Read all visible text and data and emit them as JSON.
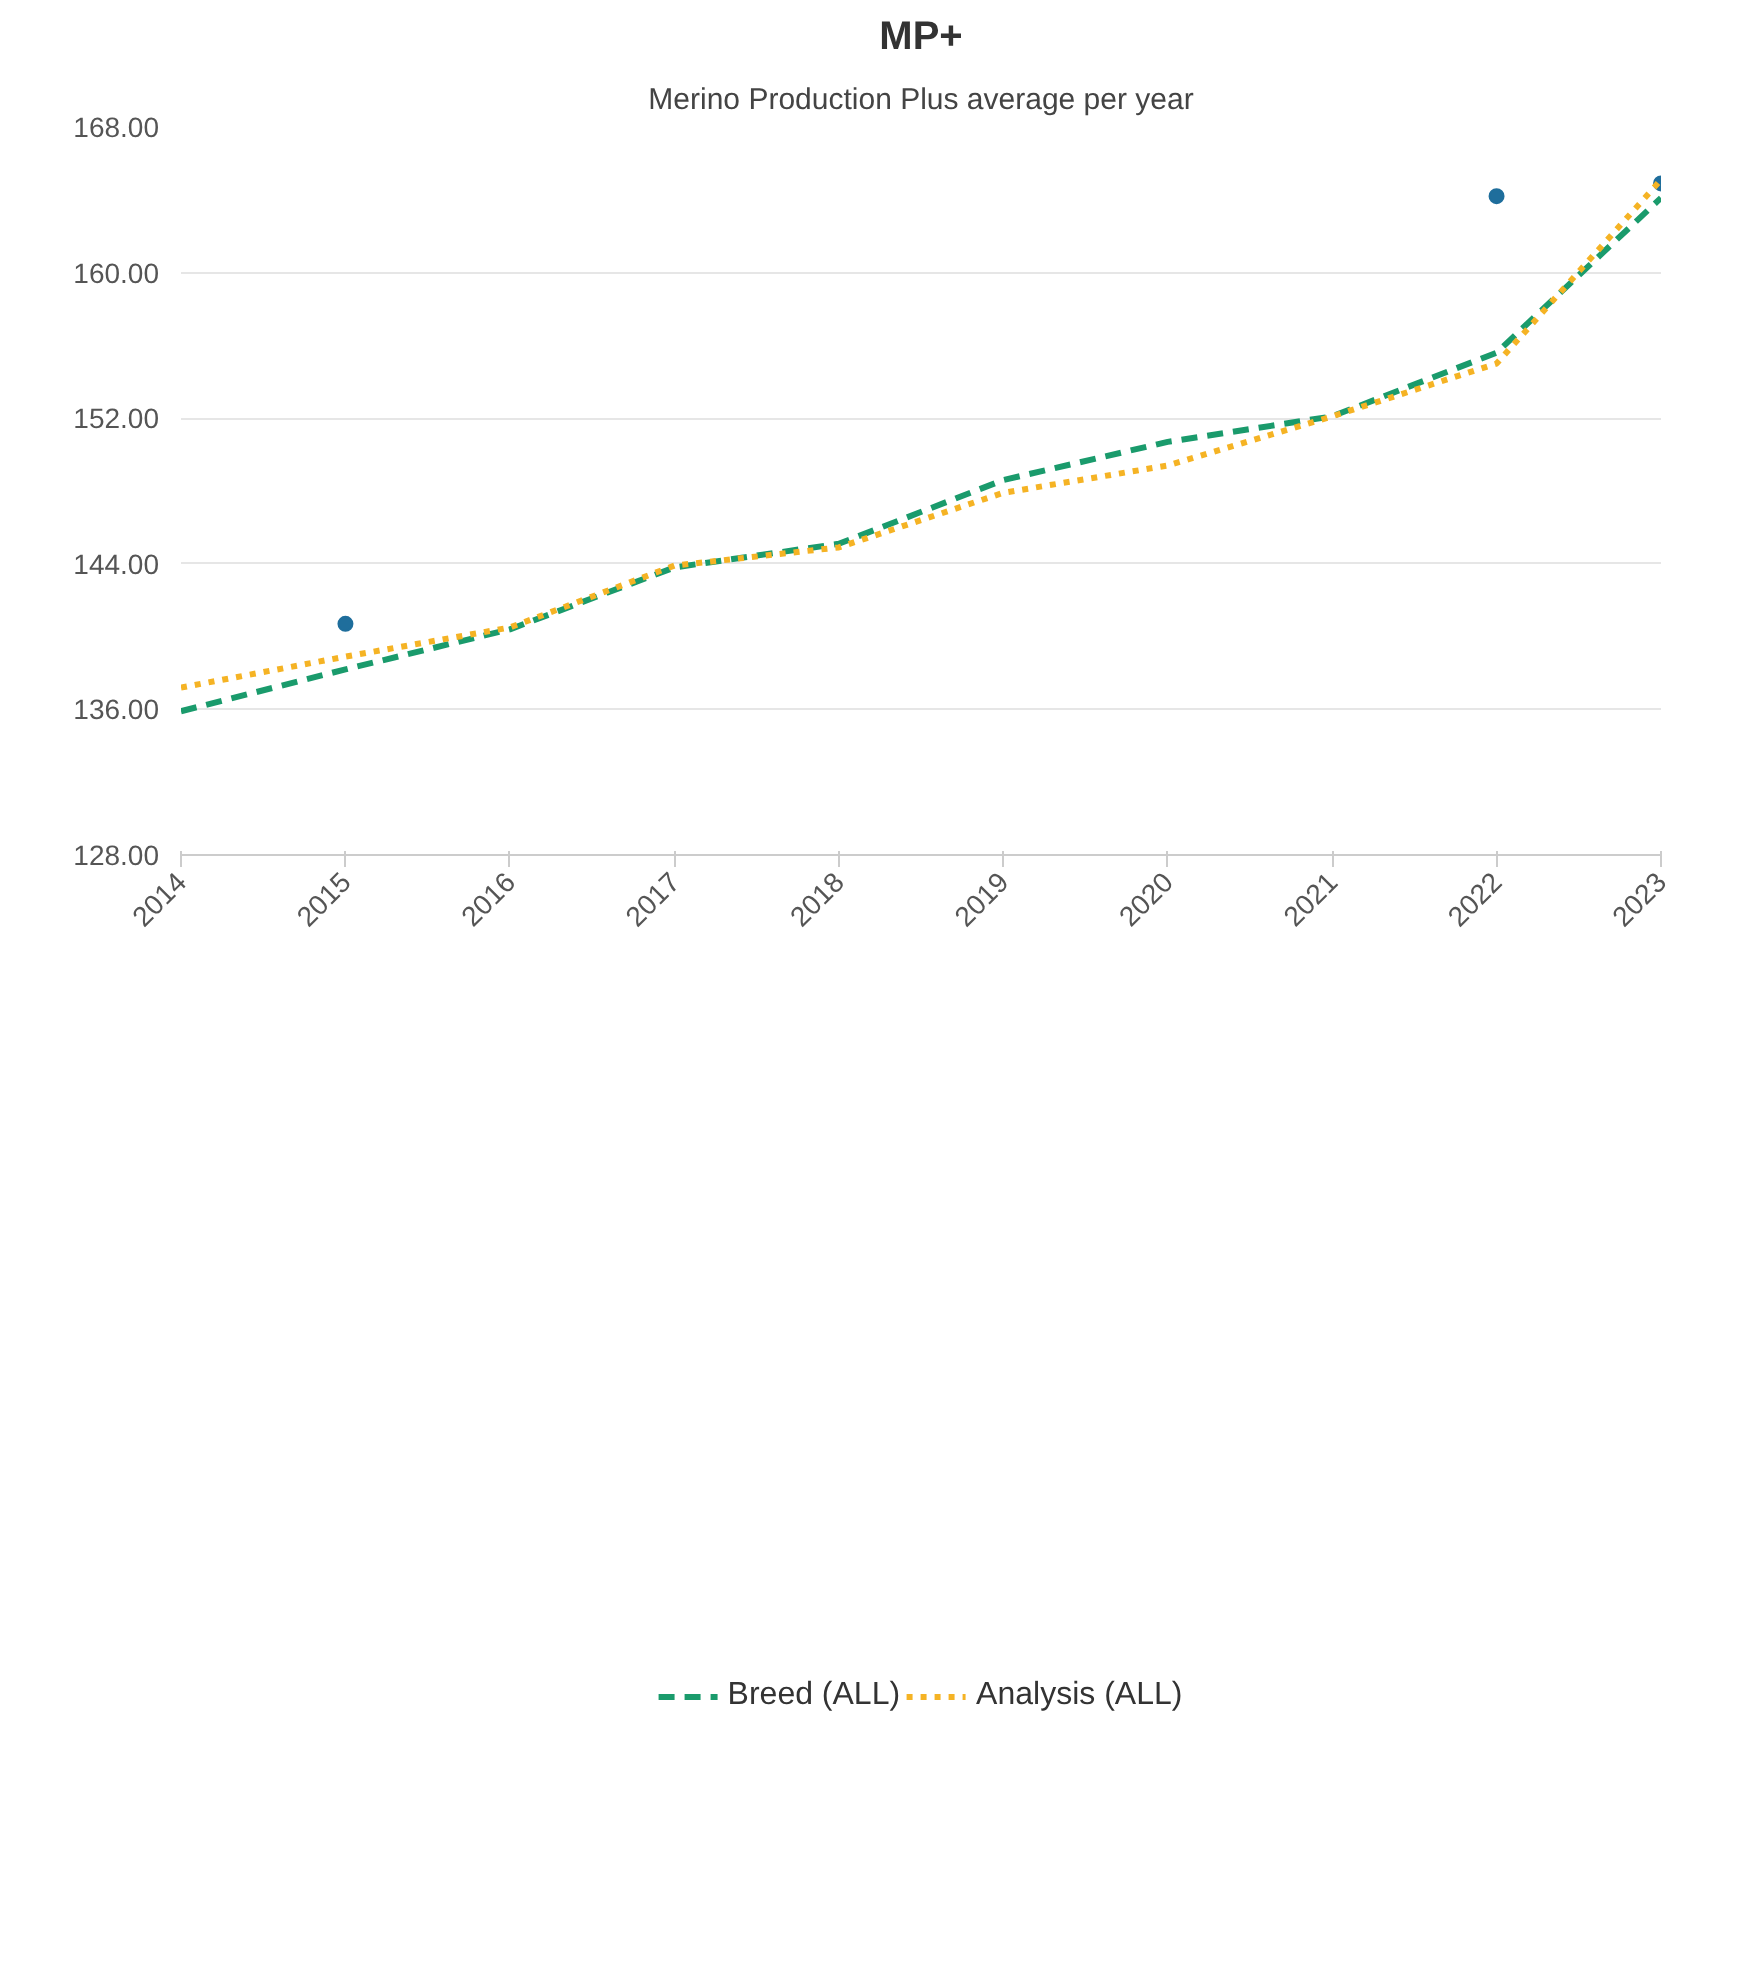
{
  "chart_data": {
    "type": "line",
    "title": "MP+",
    "subtitle": "Merino Production Plus average per year",
    "categories": [
      "2014",
      "2015",
      "2016",
      "2017",
      "2018",
      "2019",
      "2020",
      "2021",
      "2022",
      "2023"
    ],
    "series": [
      {
        "type": "scatter",
        "color": "#1f6e9c",
        "marker": "circle",
        "values": [
          null,
          140.7,
          null,
          null,
          null,
          null,
          null,
          null,
          164.2,
          164.9
        ]
      },
      {
        "name": "Breed (ALL)",
        "color": "#1a9b6c",
        "line_style": "dashed",
        "values": [
          135.9,
          138.2,
          140.4,
          143.8,
          145.1,
          148.6,
          150.7,
          152.1,
          155.6,
          164.1
        ]
      },
      {
        "name": "Analysis (ALL)",
        "color": "#f5b324",
        "line_style": "dotted",
        "values": [
          137.2,
          138.9,
          140.5,
          143.9,
          144.9,
          147.9,
          149.4,
          152.1,
          155.0,
          165.1
        ]
      }
    ],
    "ylim": [
      128,
      168
    ],
    "yticks": [
      {
        "value": 128,
        "label": "128.00"
      },
      {
        "value": 136,
        "label": "136.00"
      },
      {
        "value": 144,
        "label": "144.00"
      },
      {
        "value": 152,
        "label": "152.00"
      },
      {
        "value": 160,
        "label": "160.00"
      },
      {
        "value": 168,
        "label": "168.00"
      }
    ],
    "grid": "y",
    "legend": "bottom"
  }
}
